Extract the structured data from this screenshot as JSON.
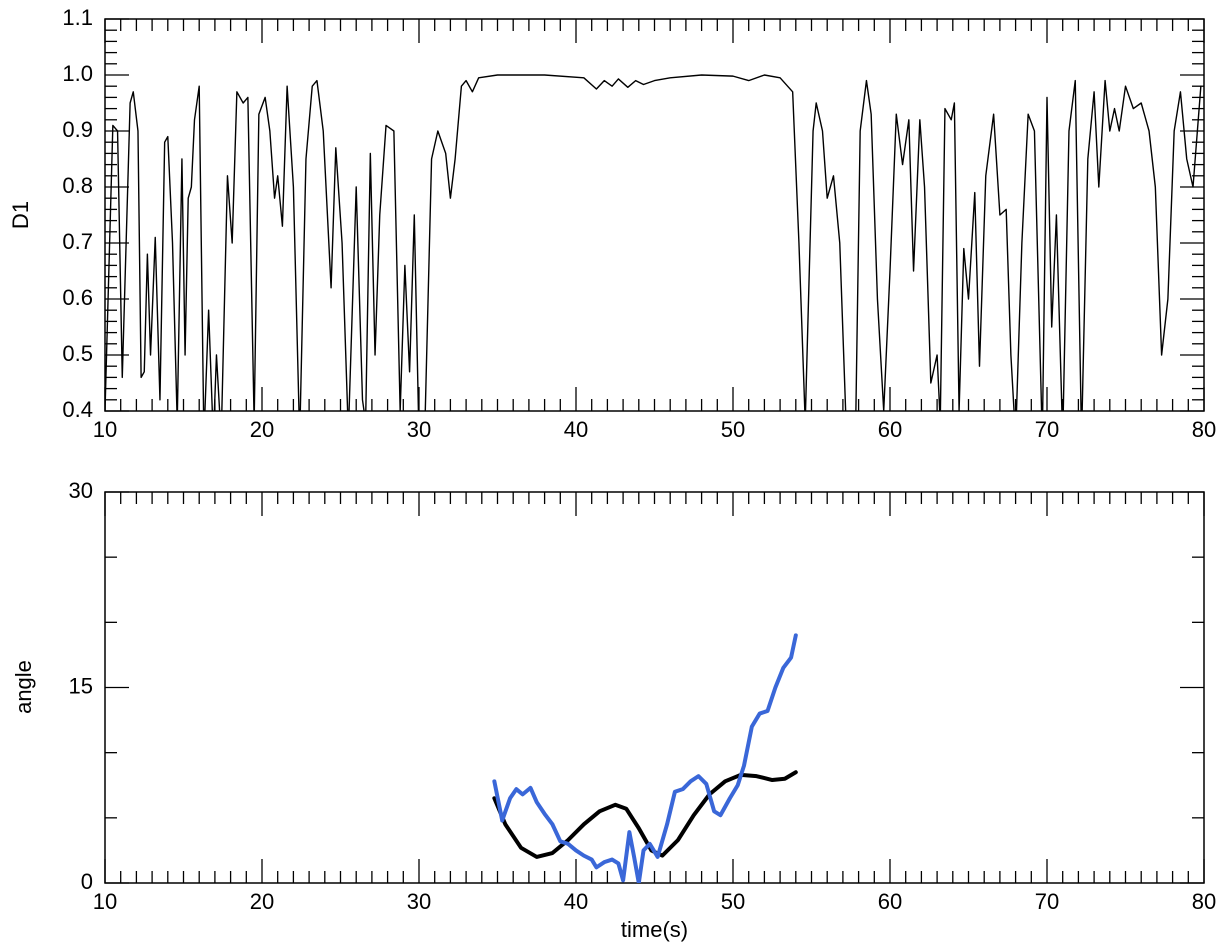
{
  "chart_data": [
    {
      "type": "line",
      "ylabel": "D1",
      "xlim": [
        10,
        80
      ],
      "xticks": [
        10,
        20,
        30,
        40,
        50,
        60,
        70,
        80
      ],
      "ylim": [
        0.4,
        1.1
      ],
      "yticks": [
        0.4,
        0.5,
        0.6,
        0.7,
        0.8,
        0.9,
        {
          "value": 1,
          "label": "1.0"
        },
        1.1
      ],
      "series": [
        {
          "color": "#000000",
          "x": [
            10.0,
            10.5,
            10.8,
            11.1,
            11.6,
            11.8,
            12.1,
            12.3,
            12.5,
            12.7,
            12.9,
            13.2,
            13.5,
            13.8,
            14.0,
            14.3,
            14.6,
            14.9,
            15.1,
            15.3,
            15.5,
            15.7,
            16.0,
            16.3,
            16.6,
            16.9,
            17.1,
            17.4,
            17.8,
            18.1,
            18.4,
            18.8,
            19.1,
            19.5,
            19.8,
            20.2,
            20.5,
            20.8,
            21.0,
            21.3,
            21.6,
            22.0,
            22.4,
            22.8,
            23.2,
            23.5,
            23.9,
            24.4,
            24.7,
            25.1,
            25.5,
            26.0,
            26.4,
            26.6,
            26.9,
            27.2,
            27.5,
            27.9,
            28.4,
            28.8,
            29.1,
            29.4,
            29.7,
            30.0,
            30.4,
            30.8,
            31.2,
            31.7,
            32.0,
            32.3,
            32.7,
            33.0,
            33.4,
            33.8,
            35,
            38,
            40.5,
            41.3,
            41.8,
            42.3,
            42.7,
            43.3,
            43.8,
            44.3,
            45,
            46,
            48,
            50,
            51,
            52,
            53,
            53.8,
            54.2,
            54.6,
            55.1,
            55.3,
            55.7,
            56.0,
            56.4,
            56.8,
            57.2,
            57.8,
            58.1,
            58.5,
            58.8,
            59.2,
            59.6,
            60.0,
            60.4,
            60.8,
            61.2,
            61.5,
            61.9,
            62.2,
            62.6,
            63.0,
            63.2,
            63.5,
            63.9,
            64.1,
            64.4,
            64.7,
            65.0,
            65.4,
            65.7,
            66.1,
            66.6,
            67.0,
            67.4,
            67.7,
            68.0,
            68.4,
            68.8,
            69.2,
            69.7,
            70.0,
            70.3,
            70.6,
            71.0,
            71.4,
            71.8,
            72.2,
            72.6,
            73.0,
            73.3,
            73.7,
            74.0,
            74.3,
            74.6,
            75.0,
            75.5,
            76.0,
            76.5,
            76.9,
            77.3,
            77.7,
            78.1,
            78.5,
            78.9,
            79.3,
            79.8
          ],
          "values": [
            0.4,
            0.91,
            0.9,
            0.46,
            0.95,
            0.97,
            0.9,
            0.46,
            0.47,
            0.68,
            0.5,
            0.71,
            0.42,
            0.88,
            0.89,
            0.7,
            0.38,
            0.85,
            0.5,
            0.78,
            0.8,
            0.92,
            0.98,
            0.35,
            0.58,
            0.35,
            0.5,
            0.35,
            0.82,
            0.7,
            0.97,
            0.95,
            0.96,
            0.38,
            0.93,
            0.96,
            0.9,
            0.78,
            0.82,
            0.73,
            0.98,
            0.8,
            0.35,
            0.85,
            0.98,
            0.99,
            0.9,
            0.62,
            0.87,
            0.7,
            0.36,
            0.8,
            0.42,
            0.38,
            0.86,
            0.5,
            0.75,
            0.91,
            0.9,
            0.4,
            0.66,
            0.47,
            0.75,
            0.35,
            0.4,
            0.85,
            0.9,
            0.86,
            0.78,
            0.85,
            0.98,
            0.99,
            0.97,
            0.995,
            1.0,
            1.0,
            0.995,
            0.975,
            0.99,
            0.98,
            0.993,
            0.978,
            0.99,
            0.983,
            0.99,
            0.995,
            1.0,
            0.998,
            0.99,
            1.0,
            0.995,
            0.97,
            0.7,
            0.38,
            0.9,
            0.95,
            0.9,
            0.78,
            0.82,
            0.7,
            0.38,
            0.35,
            0.9,
            0.99,
            0.93,
            0.6,
            0.4,
            0.65,
            0.93,
            0.84,
            0.92,
            0.65,
            0.92,
            0.8,
            0.45,
            0.5,
            0.38,
            0.94,
            0.92,
            0.95,
            0.4,
            0.69,
            0.6,
            0.79,
            0.48,
            0.82,
            0.93,
            0.75,
            0.76,
            0.5,
            0.35,
            0.7,
            0.93,
            0.9,
            0.35,
            0.96,
            0.55,
            0.75,
            0.35,
            0.9,
            0.99,
            0.35,
            0.85,
            0.97,
            0.8,
            0.99,
            0.9,
            0.94,
            0.9,
            0.98,
            0.94,
            0.95,
            0.9,
            0.8,
            0.5,
            0.6,
            0.9,
            0.97,
            0.85,
            0.8,
            0.98
          ]
        }
      ]
    },
    {
      "type": "line",
      "xlabel": "time(s)",
      "ylabel": "angle",
      "xlim": [
        10,
        80
      ],
      "xticks": [
        10,
        20,
        30,
        40,
        50,
        60,
        70,
        80
      ],
      "ylim": [
        0,
        30
      ],
      "yticks": [
        0,
        15,
        30
      ],
      "series": [
        {
          "color": "#000000",
          "x": [
            34.8,
            35.5,
            36.5,
            37.5,
            38.5,
            39.5,
            40.5,
            41.5,
            42.5,
            43.2,
            44,
            44.8,
            45.5,
            46.5,
            47.5,
            48.5,
            49.5,
            50.5,
            51.5,
            52.5,
            53.3,
            54
          ],
          "values": [
            6.5,
            4.5,
            2.7,
            2.0,
            2.3,
            3.3,
            4.5,
            5.5,
            6.0,
            5.7,
            4.2,
            2.5,
            2.1,
            3.3,
            5.2,
            6.8,
            7.8,
            8.3,
            8.2,
            7.9,
            8.0,
            8.5
          ]
        },
        {
          "color": "#3a67d8",
          "x": [
            34.8,
            35.3,
            35.8,
            36.2,
            36.6,
            37.1,
            37.5,
            38.0,
            38.5,
            39.0,
            39.5,
            40.0,
            40.5,
            41.0,
            41.3,
            41.8,
            42.3,
            42.7,
            43.0,
            43.4,
            43.7,
            44.0,
            44.3,
            44.7,
            45.2,
            45.8,
            46.3,
            46.8,
            47.3,
            47.8,
            48.3,
            48.8,
            49.2,
            49.8,
            50.3,
            50.7,
            51.2,
            51.7,
            52.2,
            52.7,
            53.2,
            53.7,
            54.0
          ],
          "values": [
            7.8,
            4.8,
            6.5,
            7.2,
            6.8,
            7.3,
            6.2,
            5.3,
            4.5,
            3.2,
            3.0,
            2.5,
            2.1,
            1.8,
            1.2,
            1.6,
            1.8,
            1.5,
            0.2,
            3.9,
            2.0,
            0.0,
            2.5,
            3.0,
            2.0,
            4.5,
            7.0,
            7.2,
            7.8,
            8.2,
            7.6,
            5.5,
            5.2,
            6.5,
            7.5,
            9.0,
            12.0,
            13.0,
            13.2,
            15.0,
            16.5,
            17.3,
            19.0
          ]
        }
      ]
    }
  ]
}
